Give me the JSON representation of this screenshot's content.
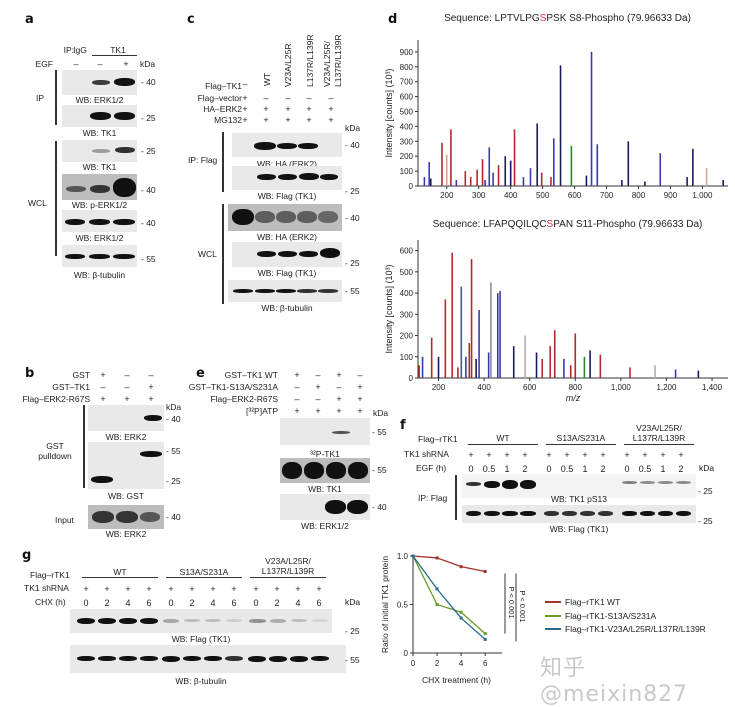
{
  "panels": {
    "a": {
      "label": "a",
      "ip_label": "IP:",
      "ip_groups": [
        "IgG",
        "TK1"
      ],
      "egf_label": "EGF",
      "egf": [
        "–",
        "–",
        "+"
      ],
      "kda": "kDa",
      "section_ip": "IP",
      "section_wcl": "WCL",
      "blots": [
        {
          "caption": "WB: ERK1/2",
          "marker": "- 40"
        },
        {
          "caption": "WB: TK1",
          "marker": "- 25"
        },
        {
          "caption": "WB: TK1",
          "marker": "- 25"
        },
        {
          "caption": "WB: p-ERK1/2",
          "marker": "- 40"
        },
        {
          "caption": "WB: ERK1/2",
          "marker": "- 40"
        },
        {
          "caption": "WB: β-tubulin",
          "marker": "- 55"
        }
      ]
    },
    "b": {
      "label": "b",
      "rows": [
        {
          "name": "GST",
          "values": [
            "+",
            "–",
            "–"
          ]
        },
        {
          "name": "GST–TK1",
          "values": [
            "–",
            "–",
            "+"
          ]
        },
        {
          "name": "Flag–ERK2-R67S",
          "values": [
            "+",
            "+",
            "+"
          ]
        }
      ],
      "kda": "kDa",
      "section_pulldown": "GST\npulldown",
      "section_pulldown_1": "GST",
      "section_pulldown_2": "pulldown",
      "section_input": "Input",
      "blots": [
        {
          "caption": "WB: ERK2",
          "marker": "- 40"
        },
        {
          "caption": "WB: GST",
          "marker_top": "- 55",
          "marker_bottom": "- 25"
        },
        {
          "caption": "WB: ERK2",
          "marker": "- 40"
        }
      ]
    },
    "c": {
      "label": "c",
      "columns": [
        "–",
        "WT",
        "V23A/L25R",
        "L137R/L139R",
        "V23A/L25R/",
        "L137R/L139R"
      ],
      "col_headers": [
        "WT",
        "V23A/L25R",
        "L137R/L139R",
        "V23A/L25R/\nL137R/L139R"
      ],
      "col_header_last_1": "V23A/L25R/",
      "col_header_last_2": "L137R/L139R",
      "rows": [
        {
          "name": "Flag–TK1",
          "values": [
            "–",
            "",
            "",
            "",
            ""
          ]
        },
        {
          "name": "Flag–vector",
          "values": [
            "+",
            "–",
            "–",
            "–",
            "–"
          ]
        },
        {
          "name": "HA–ERK2",
          "values": [
            "+",
            "+",
            "+",
            "+",
            "+"
          ]
        },
        {
          "name": "MG132",
          "values": [
            "+",
            "+",
            "+",
            "+",
            "+"
          ]
        }
      ],
      "kda": "kDa",
      "section_ip": "IP: Flag",
      "section_wcl": "WCL",
      "blots": [
        {
          "caption": "WB: HA (ERK2)",
          "marker": "- 40"
        },
        {
          "caption": "WB: Flag (TK1)",
          "marker": "- 25"
        },
        {
          "caption": "WB: HA (ERK2)",
          "marker": "- 40"
        },
        {
          "caption": "WB: Flag (TK1)",
          "marker": "- 25"
        },
        {
          "caption": "WB: β-tubulin",
          "marker": "- 55"
        }
      ]
    },
    "d": {
      "label": "d"
    },
    "e": {
      "label": "e",
      "rows": [
        {
          "name": "GST–TK1 WT",
          "values": [
            "+",
            "–",
            "+",
            "–"
          ]
        },
        {
          "name": "GST–TK1-S13A/S231A",
          "values": [
            "–",
            "+",
            "–",
            "+"
          ]
        },
        {
          "name": "Flag–ERK2-R67S",
          "values": [
            "–",
            "–",
            "+",
            "+"
          ]
        },
        {
          "name": "[³²P]ATP",
          "values": [
            "+",
            "+",
            "+",
            "+"
          ]
        }
      ],
      "kda": "kDa",
      "blots": [
        {
          "caption": "³²P-TK1",
          "marker": "- 55"
        },
        {
          "caption": "WB: TK1",
          "marker": "- 55"
        },
        {
          "caption": "WB: ERK1/2",
          "marker": "- 40"
        }
      ]
    },
    "f": {
      "label": "f",
      "construct_label": "Flag–rTK1",
      "groups": [
        "WT",
        "S13A/S231A",
        "V23A/L25R/\nL137R/L139R"
      ],
      "group_3_line1": "V23A/L25R/",
      "group_3_line2": "L137R/L139R",
      "shrna_label": "TK1 shRNA",
      "shrna": [
        "+",
        "+",
        "+",
        "+",
        "+",
        "+",
        "+",
        "+",
        "+",
        "+",
        "+",
        "+"
      ],
      "time_label": "EGF (h)",
      "times": [
        "0",
        "0.5",
        "1",
        "2",
        "0",
        "0.5",
        "1",
        "2",
        "0",
        "0.5",
        "1",
        "2"
      ],
      "kda": "kDa",
      "section_ip": "IP: Flag",
      "blots": [
        {
          "caption": "WB: TK1 pS13",
          "marker": "- 25"
        },
        {
          "caption": "WB: Flag (TK1)",
          "marker": "- 25"
        }
      ]
    },
    "g": {
      "label": "g",
      "construct_label": "Flag–rTK1",
      "groups": [
        "WT",
        "S13A/S231A",
        "V23A/L25R/\nL137R/L139R"
      ],
      "group_3_line1": "V23A/L25R/",
      "group_3_line2": "L137R/L139R",
      "shrna_label": "TK1 shRNA",
      "shrna": [
        "+",
        "+",
        "+",
        "+",
        "+",
        "+",
        "+",
        "+",
        "+",
        "+",
        "+",
        "+"
      ],
      "time_label": "CHX (h)",
      "times": [
        "0",
        "2",
        "4",
        "6",
        "0",
        "2",
        "4",
        "6",
        "0",
        "2",
        "4",
        "6"
      ],
      "kda": "kDa",
      "blots": [
        {
          "caption": "WB: Flag (TK1)",
          "marker": "- 25"
        },
        {
          "caption": "WB: β-tubulin",
          "marker": "- 55"
        }
      ],
      "significance": [
        "P < 0.001",
        "P < 0.001"
      ]
    }
  },
  "watermark": "知乎 @meixin827",
  "colors": {
    "wt_line": "#a0352e",
    "s13a_line": "#6a9a2a",
    "v23a_line": "#2a6a8a",
    "spectrum_red": "#b22a2a",
    "spectrum_blue": "#2a2a9a",
    "spectrum_green": "#2a8a2a",
    "phospho_highlight": "#e0303a"
  },
  "chart_data": [
    {
      "type": "bar",
      "title_prefix": "Sequence: LPTVLPG",
      "title_highlight": "S",
      "title_suffix": "PSK S8-Phospho (79.96633 Da)",
      "xlabel": "m/z",
      "ylabel": "Intensity [counts] (10³)",
      "xlim": [
        110,
        1080
      ],
      "ylim": [
        0,
        980
      ],
      "xticks": [
        "200",
        "300",
        "400",
        "500",
        "600",
        "700",
        "800",
        "900",
        "1,000"
      ],
      "xtick_values": [
        200,
        300,
        400,
        500,
        600,
        700,
        800,
        900,
        1000
      ],
      "yticks": [
        "0",
        "100",
        "200",
        "300",
        "400",
        "500",
        "600",
        "700",
        "800",
        "900"
      ],
      "ytick_values": [
        0,
        100,
        200,
        300,
        400,
        500,
        600,
        700,
        800,
        900
      ],
      "peaks": [
        {
          "mz": 130,
          "i": 60,
          "c": "blue"
        },
        {
          "mz": 145,
          "i": 160,
          "c": "blue"
        },
        {
          "mz": 150,
          "i": 50,
          "c": "navy"
        },
        {
          "mz": 185,
          "i": 290,
          "c": "red"
        },
        {
          "mz": 200,
          "i": 210,
          "c": "pink"
        },
        {
          "mz": 213,
          "i": 380,
          "c": "red"
        },
        {
          "mz": 230,
          "i": 40,
          "c": "blue"
        },
        {
          "mz": 258,
          "i": 100,
          "c": "red"
        },
        {
          "mz": 275,
          "i": 60,
          "c": "red"
        },
        {
          "mz": 295,
          "i": 110,
          "c": "red"
        },
        {
          "mz": 312,
          "i": 180,
          "c": "red"
        },
        {
          "mz": 320,
          "i": 40,
          "c": "blue"
        },
        {
          "mz": 333,
          "i": 260,
          "c": "blue"
        },
        {
          "mz": 345,
          "i": 90,
          "c": "blue"
        },
        {
          "mz": 362,
          "i": 140,
          "c": "red"
        },
        {
          "mz": 383,
          "i": 200,
          "c": "navy"
        },
        {
          "mz": 400,
          "i": 170,
          "c": "navy"
        },
        {
          "mz": 412,
          "i": 380,
          "c": "red"
        },
        {
          "mz": 440,
          "i": 60,
          "c": "blue"
        },
        {
          "mz": 462,
          "i": 120,
          "c": "blue"
        },
        {
          "mz": 483,
          "i": 420,
          "c": "navy"
        },
        {
          "mz": 497,
          "i": 90,
          "c": "red"
        },
        {
          "mz": 526,
          "i": 60,
          "c": "red"
        },
        {
          "mz": 535,
          "i": 320,
          "c": "blue"
        },
        {
          "mz": 556,
          "i": 810,
          "c": "navy"
        },
        {
          "mz": 590,
          "i": 270,
          "c": "green"
        },
        {
          "mz": 637,
          "i": 70,
          "c": "navy"
        },
        {
          "mz": 653,
          "i": 900,
          "c": "blue"
        },
        {
          "mz": 671,
          "i": 280,
          "c": "blue"
        },
        {
          "mz": 748,
          "i": 40,
          "c": "navy"
        },
        {
          "mz": 768,
          "i": 300,
          "c": "navy"
        },
        {
          "mz": 820,
          "i": 30,
          "c": "navy"
        },
        {
          "mz": 868,
          "i": 220,
          "c": "blue"
        },
        {
          "mz": 952,
          "i": 60,
          "c": "navy"
        },
        {
          "mz": 970,
          "i": 250,
          "c": "navy"
        },
        {
          "mz": 1013,
          "i": 120,
          "c": "pink"
        },
        {
          "mz": 1065,
          "i": 40,
          "c": "navy"
        }
      ]
    },
    {
      "type": "bar",
      "title_prefix": "Sequence: LFAPQQILQC",
      "title_highlight": "S",
      "title_suffix": "PAN S11-Phospho (79.96633 Da)",
      "xlabel": "m/z",
      "ylabel": "Intensity [counts] (10³)",
      "xlim": [
        110,
        1470
      ],
      "ylim": [
        0,
        650
      ],
      "xticks": [
        "200",
        "400",
        "600",
        "800",
        "1,000",
        "1,200",
        "1,400"
      ],
      "xtick_values": [
        200,
        400,
        600,
        800,
        1000,
        1200,
        1400
      ],
      "yticks": [
        "0",
        "100",
        "200",
        "300",
        "400",
        "500",
        "600"
      ],
      "ytick_values": [
        0,
        100,
        200,
        300,
        400,
        500,
        600
      ],
      "peaks": [
        {
          "mz": 115,
          "i": 60,
          "c": "red"
        },
        {
          "mz": 130,
          "i": 100,
          "c": "blue"
        },
        {
          "mz": 170,
          "i": 190,
          "c": "red"
        },
        {
          "mz": 200,
          "i": 100,
          "c": "navy"
        },
        {
          "mz": 230,
          "i": 370,
          "c": "red"
        },
        {
          "mz": 260,
          "i": 590,
          "c": "red"
        },
        {
          "mz": 285,
          "i": 50,
          "c": "red"
        },
        {
          "mz": 300,
          "i": 430,
          "c": "slate"
        },
        {
          "mz": 320,
          "i": 100,
          "c": "blue"
        },
        {
          "mz": 335,
          "i": 165,
          "c": "red"
        },
        {
          "mz": 345,
          "i": 560,
          "c": "red"
        },
        {
          "mz": 365,
          "i": 90,
          "c": "navy"
        },
        {
          "mz": 378,
          "i": 320,
          "c": "blue"
        },
        {
          "mz": 420,
          "i": 120,
          "c": "blue"
        },
        {
          "mz": 430,
          "i": 450,
          "c": "grayblue"
        },
        {
          "mz": 460,
          "i": 400,
          "c": "blue"
        },
        {
          "mz": 470,
          "i": 410,
          "c": "blue"
        },
        {
          "mz": 530,
          "i": 150,
          "c": "navy"
        },
        {
          "mz": 580,
          "i": 200,
          "c": "gray"
        },
        {
          "mz": 630,
          "i": 120,
          "c": "navy"
        },
        {
          "mz": 655,
          "i": 90,
          "c": "red"
        },
        {
          "mz": 690,
          "i": 150,
          "c": "red"
        },
        {
          "mz": 710,
          "i": 225,
          "c": "red"
        },
        {
          "mz": 750,
          "i": 90,
          "c": "blue"
        },
        {
          "mz": 780,
          "i": 60,
          "c": "red"
        },
        {
          "mz": 800,
          "i": 210,
          "c": "red"
        },
        {
          "mz": 840,
          "i": 100,
          "c": "green"
        },
        {
          "mz": 865,
          "i": 130,
          "c": "navy"
        },
        {
          "mz": 910,
          "i": 110,
          "c": "red"
        },
        {
          "mz": 1040,
          "i": 50,
          "c": "red"
        },
        {
          "mz": 1150,
          "i": 60,
          "c": "gray"
        },
        {
          "mz": 1240,
          "i": 40,
          "c": "blue"
        },
        {
          "mz": 1340,
          "i": 35,
          "c": "navy"
        }
      ]
    },
    {
      "type": "line",
      "xlabel": "CHX treatment (h)",
      "ylabel": "Ratio of initial TK1 protein",
      "x": [
        0,
        2,
        4,
        6
      ],
      "xlim": [
        0,
        7
      ],
      "ylim": [
        0,
        1.0
      ],
      "xticks": [
        "0",
        "2",
        "4",
        "6"
      ],
      "yticks": [
        "0",
        "0.5",
        "1.0"
      ],
      "ytick_values": [
        0,
        0.5,
        1.0
      ],
      "legend_position": "right",
      "series": [
        {
          "name": "Flag–rTK1 WT",
          "values": [
            1.0,
            0.98,
            0.89,
            0.84
          ],
          "color": "#a0352e"
        },
        {
          "name": "Flag–rTK1-S13A/S231A",
          "values": [
            1.0,
            0.5,
            0.42,
            0.2
          ],
          "color": "#6a9a2a"
        },
        {
          "name": "Flag–rTK1-V23A/L25R/L137R/L139R",
          "values": [
            1.0,
            0.66,
            0.36,
            0.14
          ],
          "color": "#2a6a8a"
        }
      ],
      "annotations": [
        "P < 0.001",
        "P < 0.001"
      ]
    }
  ]
}
